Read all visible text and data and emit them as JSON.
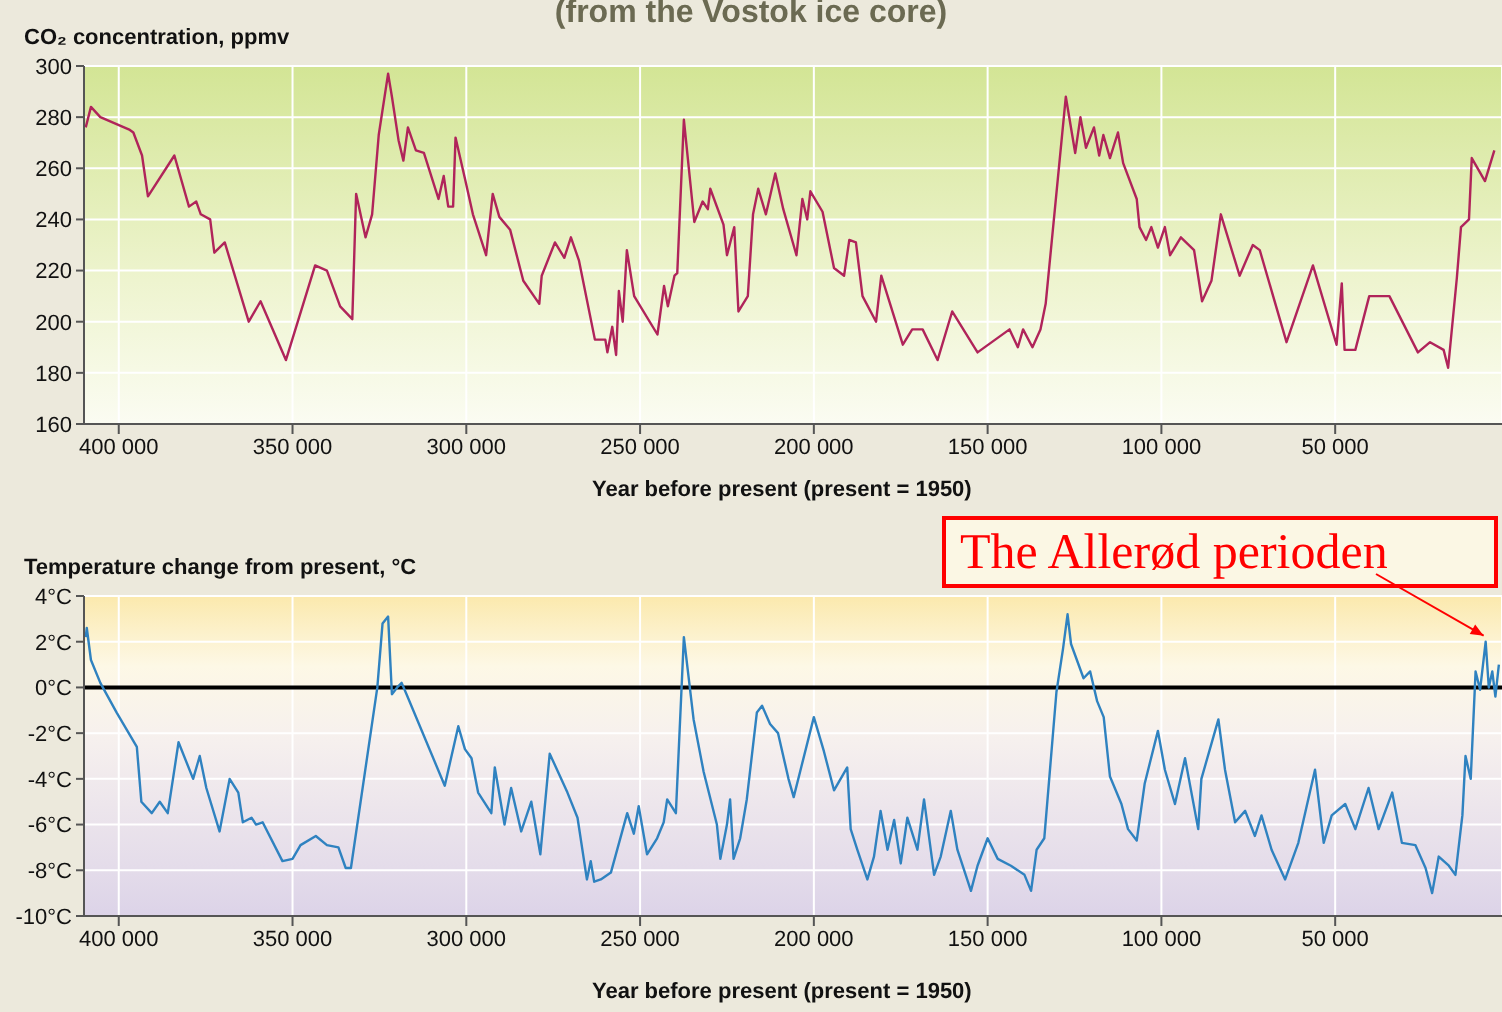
{
  "chart_data": [
    {
      "type": "line",
      "title": "(from the Vostok ice core)",
      "ylabel": "CO₂ concentration, ppmv",
      "xlabel": "Year before present (present = 1950)",
      "x": [
        409500,
        408000,
        405300,
        396800,
        395800,
        393300,
        391600,
        384000,
        379800,
        377700,
        376400,
        373700,
        372500,
        369500,
        362600,
        359200,
        351900,
        343500,
        340100,
        336300,
        332800,
        331700,
        329000,
        327100,
        325200,
        322500,
        321400,
        319500,
        318100,
        316800,
        314500,
        312200,
        308000,
        306500,
        305200,
        303800,
        303100,
        300400,
        298100,
        294300,
        292400,
        290500,
        287400,
        283600,
        279000,
        278300,
        274500,
        271800,
        269900,
        267600,
        263000,
        260000,
        259400,
        258000,
        256900,
        256100,
        255000,
        253800,
        251700,
        245000,
        243100,
        242000,
        240100,
        239300,
        237400,
        234400,
        232000,
        230500,
        229800,
        226000,
        225000,
        222900,
        221700,
        219000,
        217500,
        216000,
        213800,
        211100,
        208800,
        205000,
        203300,
        201900,
        201000,
        197500,
        194200,
        191300,
        189800,
        187900,
        186000,
        182100,
        180600,
        174400,
        171700,
        168700,
        164400,
        160200,
        152900,
        143700,
        141300,
        139800,
        137100,
        134800,
        133300,
        127500,
        124800,
        123300,
        121700,
        119400,
        117900,
        116700,
        114800,
        112500,
        111000,
        107100,
        106300,
        104400,
        102900,
        101000,
        99000,
        97500,
        94400,
        90600,
        88300,
        85600,
        82900,
        77500,
        73700,
        71700,
        64000,
        56400,
        49600,
        48100,
        47300,
        44200,
        40200,
        34400,
        26200,
        22700,
        18800,
        17500,
        15000,
        13800,
        11500,
        10700,
        6900,
        4200
      ],
      "series": [
        {
          "color": "#b0245a",
          "values": [
            276,
            284,
            280,
            275,
            274,
            265,
            249,
            265,
            245,
            247,
            242,
            240,
            227,
            231,
            200,
            208,
            185,
            222,
            220,
            206,
            201,
            250,
            233,
            242,
            273,
            297,
            288,
            271,
            263,
            276,
            267,
            266,
            248,
            257,
            245,
            245,
            272,
            256,
            242,
            226,
            250,
            241,
            236,
            216,
            207,
            218,
            231,
            225,
            233,
            224,
            193,
            193,
            188,
            198,
            187,
            212,
            200,
            228,
            210,
            195,
            214,
            206,
            218,
            219,
            279,
            239,
            247,
            244,
            252,
            238,
            226,
            237,
            204,
            210,
            242,
            252,
            242,
            258,
            244,
            226,
            248,
            240,
            251,
            243,
            221,
            218,
            232,
            231,
            210,
            200,
            218,
            191,
            197,
            197,
            185,
            204,
            188,
            197,
            190,
            197,
            190,
            197,
            207,
            288,
            266,
            280,
            268,
            276,
            265,
            273,
            264,
            274,
            262,
            248,
            237,
            232,
            237,
            229,
            237,
            226,
            233,
            228,
            208,
            216,
            242,
            218,
            230,
            228,
            192,
            222,
            191,
            215,
            189,
            189,
            210,
            210,
            188,
            192,
            189,
            182,
            217,
            237,
            240,
            264,
            255,
            267
          ]
        }
      ],
      "xlim": [
        410000,
        2000
      ],
      "ylim": [
        160,
        300
      ],
      "xticks": [
        {
          "value": 400000,
          "label": "400 000"
        },
        {
          "value": 350000,
          "label": "350 000"
        },
        {
          "value": 300000,
          "label": "300 000"
        },
        {
          "value": 250000,
          "label": "250 000"
        },
        {
          "value": 200000,
          "label": "200 000"
        },
        {
          "value": 150000,
          "label": "150 000"
        },
        {
          "value": 100000,
          "label": "100 000"
        },
        {
          "value": 50000,
          "label": "50 000"
        }
      ],
      "yticks": [
        160,
        180,
        200,
        220,
        240,
        260,
        280,
        300
      ],
      "grid": true
    },
    {
      "type": "line",
      "ylabel": "Temperature change from present, °C",
      "xlabel": "Year before present (present = 1950)",
      "x": [
        409500,
        409200,
        408000,
        405300,
        400600,
        394800,
        393500,
        390500,
        388200,
        385900,
        382800,
        378600,
        376700,
        374800,
        371000,
        368100,
        365600,
        364300,
        361800,
        360500,
        358600,
        352900,
        350000,
        347700,
        343300,
        340100,
        336800,
        334700,
        333200,
        325600,
        324100,
        322500,
        321400,
        319900,
        318600,
        317200,
        306200,
        302300,
        300400,
        298500,
        296600,
        292800,
        291800,
        289000,
        287100,
        284200,
        281300,
        278700,
        276000,
        270900,
        268000,
        265300,
        264200,
        263200,
        261300,
        258400,
        253700,
        251800,
        250400,
        248000,
        245100,
        243200,
        242200,
        239700,
        237400,
        234600,
        231700,
        227900,
        226900,
        225000,
        224100,
        223100,
        221200,
        219300,
        216400,
        214900,
        212600,
        210300,
        207300,
        205800,
        200000,
        197100,
        194200,
        190400,
        189400,
        187500,
        184600,
        182700,
        180800,
        178800,
        176900,
        175000,
        173100,
        170200,
        168300,
        165400,
        163500,
        160600,
        158700,
        154800,
        152900,
        150000,
        147100,
        143300,
        139400,
        137500,
        135900,
        133700,
        130200,
        128300,
        127000,
        126000,
        122400,
        120500,
        118500,
        116600,
        114800,
        111500,
        109600,
        107100,
        104800,
        101000,
        99000,
        96100,
        93200,
        89400,
        88500,
        83600,
        81700,
        78800,
        75900,
        73100,
        71200,
        68300,
        64400,
        60600,
        55800,
        53300,
        51000,
        47100,
        44200,
        40400,
        37500,
        33600,
        30800,
        26900,
        24000,
        22100,
        20200,
        17300,
        15400,
        13400,
        12500,
        11000,
        9600,
        8300,
        6700,
        5800,
        4800,
        3900,
        2900
      ],
      "series": [
        {
          "color": "#2f82c0",
          "values": [
            2.2,
            2.6,
            1.2,
            0.2,
            -1.1,
            -2.6,
            -5.0,
            -5.5,
            -5.0,
            -5.5,
            -2.4,
            -4.0,
            -3.0,
            -4.4,
            -6.3,
            -4.0,
            -4.6,
            -5.9,
            -5.7,
            -6.0,
            -5.9,
            -7.6,
            -7.5,
            -6.9,
            -6.5,
            -6.9,
            -7.0,
            -7.9,
            -7.9,
            0.0,
            2.8,
            3.1,
            -0.3,
            0.0,
            0.2,
            -0.3,
            -4.3,
            -1.7,
            -2.7,
            -3.1,
            -4.6,
            -5.5,
            -3.5,
            -6.0,
            -4.4,
            -6.3,
            -5.0,
            -7.3,
            -2.9,
            -4.6,
            -5.7,
            -8.4,
            -7.6,
            -8.5,
            -8.4,
            -8.1,
            -5.5,
            -6.4,
            -5.2,
            -7.3,
            -6.6,
            -5.9,
            -4.9,
            -5.5,
            2.2,
            -1.4,
            -3.7,
            -6.0,
            -7.5,
            -6.0,
            -4.9,
            -7.5,
            -6.6,
            -4.9,
            -1.1,
            -0.8,
            -1.6,
            -2.0,
            -4.0,
            -4.8,
            -1.3,
            -2.8,
            -4.5,
            -3.5,
            -6.2,
            -7.1,
            -8.4,
            -7.4,
            -5.4,
            -7.1,
            -5.8,
            -7.7,
            -5.7,
            -7.1,
            -4.9,
            -8.2,
            -7.4,
            -5.4,
            -7.1,
            -8.9,
            -7.8,
            -6.6,
            -7.5,
            -7.8,
            -8.2,
            -8.9,
            -7.1,
            -6.6,
            -0.2,
            1.7,
            3.2,
            1.9,
            0.4,
            0.7,
            -0.6,
            -1.3,
            -3.9,
            -5.1,
            -6.2,
            -6.7,
            -4.2,
            -1.9,
            -3.6,
            -5.1,
            -3.1,
            -6.2,
            -4.0,
            -1.4,
            -3.6,
            -5.9,
            -5.4,
            -6.5,
            -5.6,
            -7.1,
            -8.4,
            -6.8,
            -3.6,
            -6.8,
            -5.6,
            -5.1,
            -6.2,
            -4.4,
            -6.2,
            -4.6,
            -6.8,
            -6.9,
            -7.9,
            -9.0,
            -7.4,
            -7.8,
            -8.2,
            -5.6,
            -3.0,
            -4.0,
            0.7,
            -0.1,
            2.0,
            0.0,
            0.7,
            -0.4,
            1.0
          ]
        }
      ],
      "xlim": [
        410000,
        2000
      ],
      "ylim": [
        -10,
        4
      ],
      "xticks": [
        {
          "value": 400000,
          "label": "400 000"
        },
        {
          "value": 350000,
          "label": "350 000"
        },
        {
          "value": 300000,
          "label": "300 000"
        },
        {
          "value": 250000,
          "label": "250 000"
        },
        {
          "value": 200000,
          "label": "200 000"
        },
        {
          "value": 150000,
          "label": "150 000"
        },
        {
          "value": 100000,
          "label": "100 000"
        },
        {
          "value": 50000,
          "label": "50 000"
        }
      ],
      "yticks": [
        {
          "value": -10,
          "label": "-10°C"
        },
        {
          "value": -8,
          "label": "-8°C"
        },
        {
          "value": -6,
          "label": "-6°C"
        },
        {
          "value": -4,
          "label": "-4°C"
        },
        {
          "value": -2,
          "label": "-2°C"
        },
        {
          "value": 0,
          "label": "0°C"
        },
        {
          "value": 2,
          "label": "2°C"
        },
        {
          "value": 4,
          "label": "4°C"
        }
      ],
      "grid": true,
      "ref_lines": [
        {
          "axis": "y",
          "value": 0,
          "color": "#000000"
        }
      ],
      "annotations": [
        {
          "text": "The Allerød perioden",
          "x": 6700,
          "y": 2.0
        }
      ]
    }
  ]
}
